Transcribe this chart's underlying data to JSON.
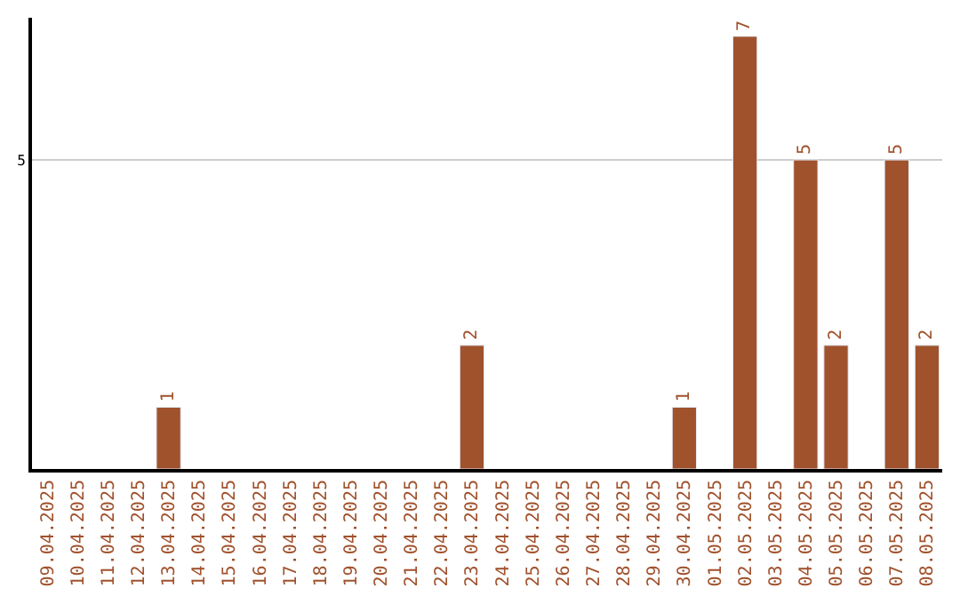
{
  "chart_data": {
    "type": "bar",
    "categories": [
      "09.04.2025",
      "10.04.2025",
      "11.04.2025",
      "12.04.2025",
      "13.04.2025",
      "14.04.2025",
      "15.04.2025",
      "16.04.2025",
      "17.04.2025",
      "18.04.2025",
      "19.04.2025",
      "20.04.2025",
      "21.04.2025",
      "22.04.2025",
      "23.04.2025",
      "24.04.2025",
      "25.04.2025",
      "26.04.2025",
      "27.04.2025",
      "28.04.2025",
      "29.04.2025",
      "30.04.2025",
      "01.05.2025",
      "02.05.2025",
      "03.05.2025",
      "04.05.2025",
      "05.05.2025",
      "06.05.2025",
      "07.05.2025",
      "08.05.2025"
    ],
    "values": [
      null,
      null,
      null,
      null,
      1,
      null,
      null,
      null,
      null,
      null,
      null,
      null,
      null,
      null,
      2,
      null,
      null,
      null,
      null,
      null,
      null,
      1,
      null,
      7,
      null,
      5,
      2,
      null,
      5,
      2
    ],
    "value_labels": [
      null,
      null,
      null,
      null,
      "1",
      null,
      null,
      null,
      null,
      null,
      null,
      null,
      null,
      null,
      "2",
      null,
      null,
      null,
      null,
      null,
      null,
      "1",
      null,
      "7",
      null,
      "5",
      "2",
      null,
      "5",
      "2"
    ],
    "color": "#a0522d",
    "ylim": [
      0,
      7.3
    ],
    "yticks": [
      5
    ],
    "grid": "y",
    "legend": false
  }
}
